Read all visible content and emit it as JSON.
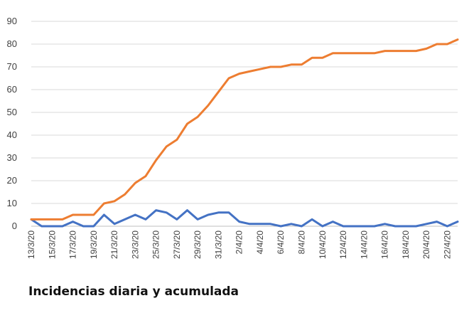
{
  "chart_data": {
    "type": "line",
    "title": "Incidencias diaria y acumulada",
    "xlabel": "",
    "ylabel": "",
    "ylim": [
      0,
      90
    ],
    "yticks": [
      0,
      10,
      20,
      30,
      40,
      50,
      60,
      70,
      80,
      90
    ],
    "grid": "horizontal",
    "legend": "none",
    "x": [
      "13/3/20",
      "14/3/20",
      "15/3/20",
      "16/3/20",
      "17/3/20",
      "18/3/20",
      "19/3/20",
      "20/3/20",
      "21/3/20",
      "22/3/20",
      "23/3/20",
      "24/3/20",
      "25/3/20",
      "26/3/20",
      "27/3/20",
      "28/3/20",
      "29/3/20",
      "30/3/20",
      "31/3/20",
      "1/4/20",
      "2/4/20",
      "3/4/20",
      "4/4/20",
      "5/4/20",
      "6/4/20",
      "7/4/20",
      "8/4/20",
      "9/4/20",
      "10/4/20",
      "11/4/20",
      "12/4/20",
      "13/4/20",
      "14/4/20",
      "15/4/20",
      "16/4/20",
      "17/4/20",
      "18/4/20",
      "19/4/20",
      "20/4/20",
      "21/4/20",
      "22/4/20",
      "23/4/20"
    ],
    "xtick_labels": [
      "13/3/20",
      "15/3/20",
      "17/3/20",
      "19/3/20",
      "21/3/20",
      "23/3/20",
      "25/3/20",
      "27/3/20",
      "29/3/20",
      "31/3/20",
      "2/4/20",
      "4/4/20",
      "6/4/20",
      "8/4/20",
      "10/4/20",
      "12/4/20",
      "14/4/20",
      "16/4/20",
      "18/4/20",
      "20/4/20",
      "22/4/20"
    ],
    "series": [
      {
        "color": "#4472C4",
        "values": [
          3,
          0,
          0,
          0,
          2,
          0,
          0,
          5,
          1,
          3,
          5,
          3,
          7,
          6,
          3,
          7,
          3,
          5,
          6,
          6,
          2,
          1,
          1,
          1,
          0,
          1,
          0,
          3,
          0,
          2,
          0,
          0,
          0,
          0,
          1,
          0,
          0,
          0,
          1,
          2,
          0,
          2
        ]
      },
      {
        "color": "#ED7D31",
        "values": [
          3,
          3,
          3,
          3,
          5,
          5,
          5,
          10,
          11,
          14,
          19,
          22,
          29,
          35,
          38,
          45,
          48,
          53,
          59,
          65,
          67,
          68,
          69,
          70,
          70,
          71,
          71,
          74,
          74,
          76,
          76,
          76,
          76,
          76,
          77,
          77,
          77,
          77,
          78,
          80,
          80,
          82
        ]
      }
    ]
  }
}
